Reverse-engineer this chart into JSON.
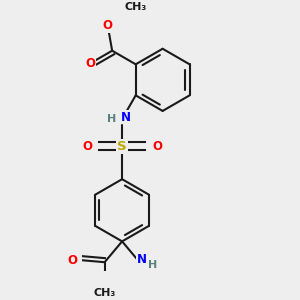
{
  "background_color": "#eeeeee",
  "bond_color": "#1a1a1a",
  "bond_width": 1.5,
  "atom_colors": {
    "O": "#ff0000",
    "N": "#0000ff",
    "S": "#bbaa00",
    "H": "#5a8080",
    "C": "#1a1a1a"
  },
  "font_size": 8.5,
  "fig_width": 3.0,
  "fig_height": 3.0,
  "dpi": 100
}
